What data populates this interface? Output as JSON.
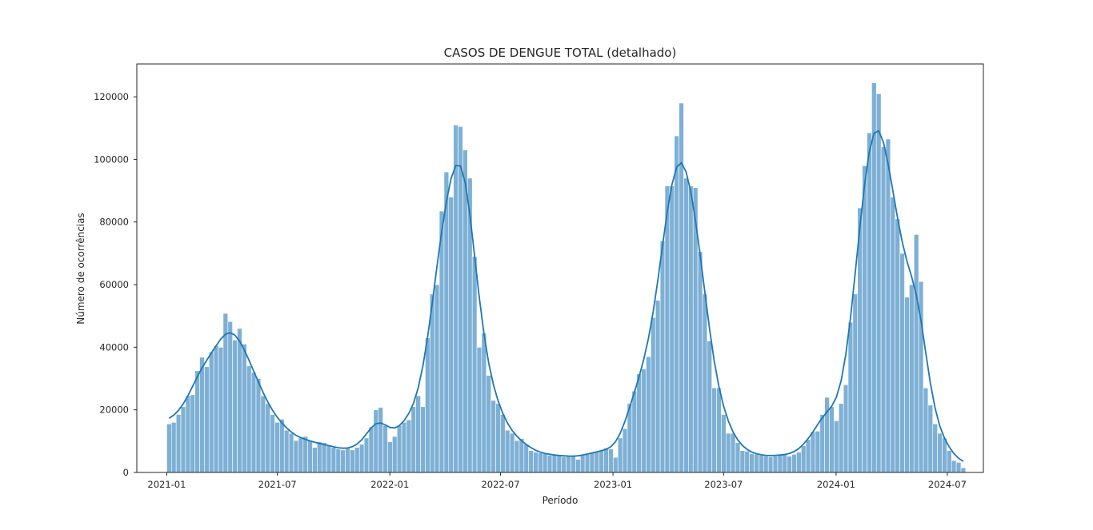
{
  "chart_data": {
    "type": "bar",
    "title": "CASOS DE DENGUE TOTAL (detalhado)",
    "xlabel": "Período",
    "ylabel": "Número de ocorrências",
    "x_start": "2021-01-01",
    "x_end": "2024-07-31",
    "xlim": [
      "2020-11-13",
      "2024-08-29"
    ],
    "ylim": [
      0,
      130500
    ],
    "x_ticks": [
      "2021-01",
      "2021-07",
      "2022-01",
      "2022-07",
      "2023-01",
      "2023-07",
      "2024-01",
      "2024-07"
    ],
    "y_ticks": [
      0,
      20000,
      40000,
      60000,
      80000,
      100000,
      120000
    ],
    "grid": false,
    "legend": "none",
    "bar_color": "#7eb0d5",
    "bar_edge_color": "#ffffff",
    "kde_color": "#1f77b4",
    "series": [
      {
        "values": [
          15500,
          16000,
          18500,
          21000,
          24500,
          24800,
          32500,
          36800,
          33800,
          38500,
          40500,
          40000,
          50800,
          48200,
          42300,
          46000,
          41000,
          34000,
          32000,
          30000,
          24500,
          22000,
          18500,
          16000,
          17000,
          13500,
          12500,
          10200,
          11000,
          11500,
          10200,
          8000,
          9800,
          9500,
          8500,
          8000,
          7500,
          7200,
          7800,
          7200,
          8000,
          9000,
          11000,
          14500,
          20000,
          20800,
          15000,
          9800,
          11500,
          15000,
          16000,
          16800,
          21000,
          24500,
          21000,
          43000,
          57000,
          60000,
          83500,
          96000,
          88000,
          111000,
          110500,
          103000,
          94000,
          69000,
          40000,
          44500,
          31000,
          23000,
          22000,
          18500,
          13500,
          12500,
          10200,
          10800,
          9000,
          7000,
          6500,
          6200,
          6000,
          5500,
          5800,
          5300,
          5000,
          5300,
          5500,
          4200,
          5500,
          6000,
          6300,
          6500,
          7000,
          7800,
          7500,
          4800,
          11000,
          14000,
          22000,
          26000,
          31500,
          33000,
          37000,
          49500,
          55000,
          74000,
          91500,
          91500,
          107500,
          118000,
          94000,
          91500,
          91000,
          70500,
          57000,
          42000,
          27000,
          27000,
          18500,
          12500,
          12500,
          9500,
          7000,
          6800,
          6000,
          5800,
          5500,
          5200,
          5000,
          5200,
          5800,
          6000,
          5200,
          5800,
          6500,
          8500,
          10500,
          13000,
          13200,
          18500,
          24000,
          21000,
          16500,
          22000,
          28000,
          48000,
          57000,
          84500,
          98000,
          108500,
          124500,
          121000,
          104000,
          106500,
          88000,
          81000,
          70000,
          56000,
          60000,
          76000,
          61000,
          27000,
          21500,
          15500,
          12500,
          11000,
          7000,
          3800,
          3200,
          1500
        ]
      }
    ]
  }
}
